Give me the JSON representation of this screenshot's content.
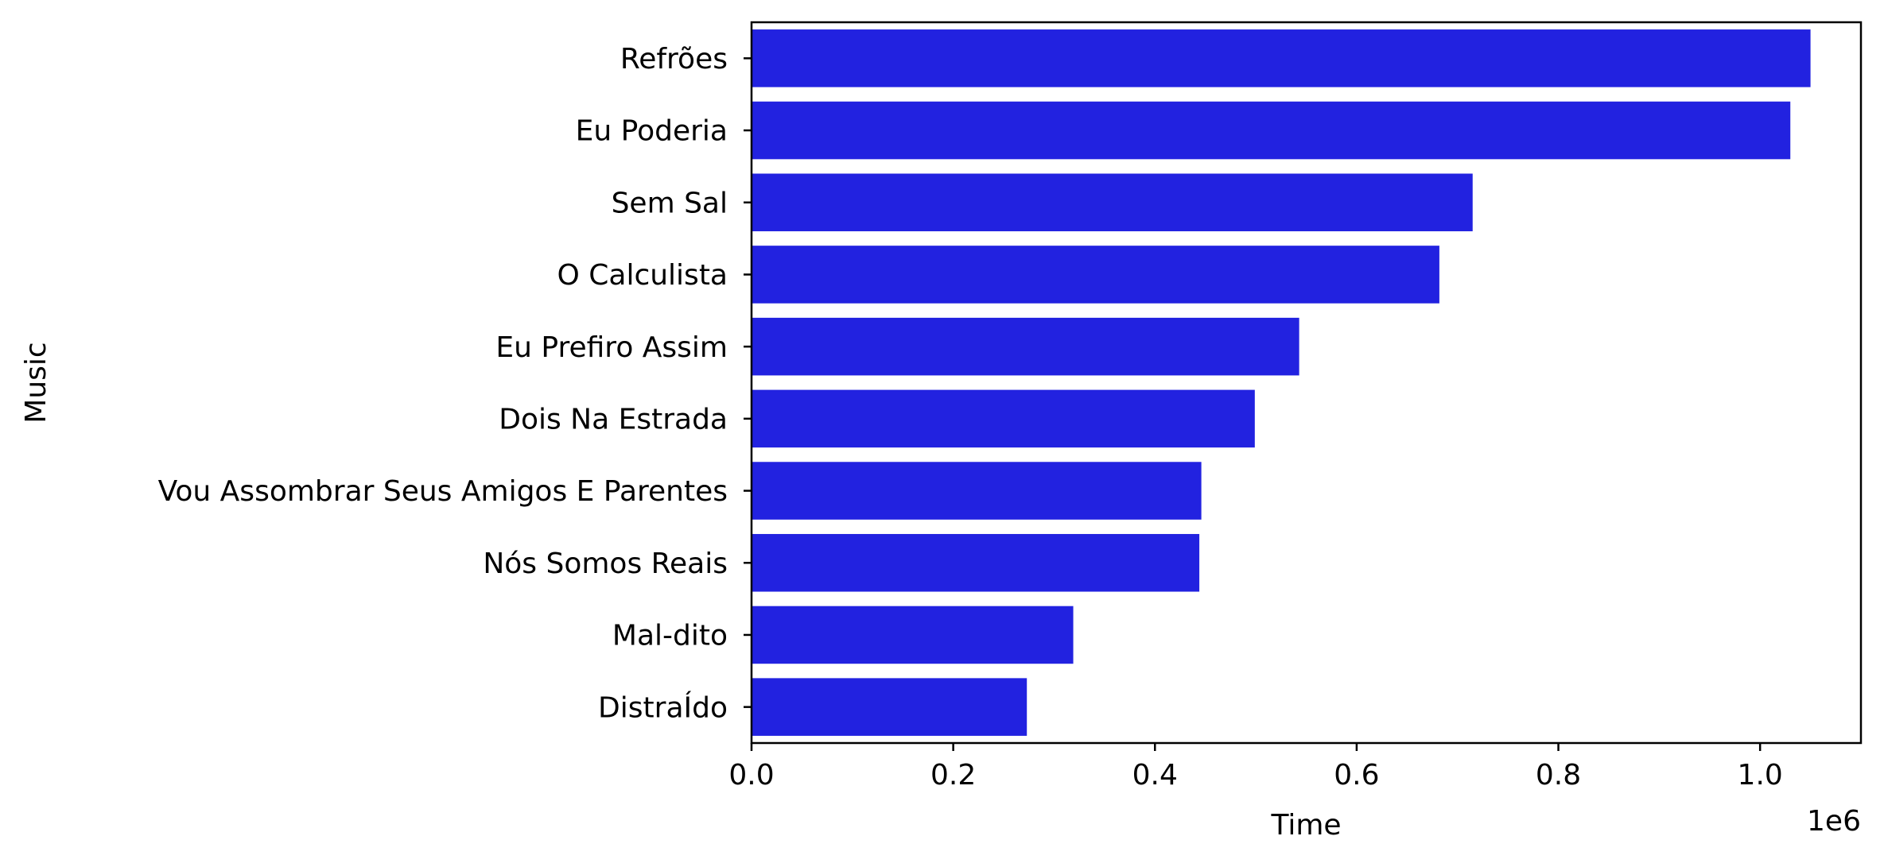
{
  "chart_data": {
    "type": "bar",
    "orientation": "horizontal",
    "title": "",
    "xlabel": "Time",
    "ylabel": "Music",
    "x_offset_label": "1e6",
    "xlim": [
      0,
      1.1
    ],
    "x_ticks": [
      "0.0",
      "0.2",
      "0.4",
      "0.6",
      "0.8",
      "1.0"
    ],
    "grid": false,
    "legend": "none",
    "bar_color": "#2222e0",
    "categories": [
      "Refrões",
      "Eu Poderia",
      "Sem Sal",
      "O Calculista",
      "Eu Prefiro Assim",
      "Dois Na Estrada",
      "Vou Assombrar Seus Amigos E Parentes",
      "Nós Somos Reais",
      "Mal-dito",
      "DistraÍdo"
    ],
    "values": [
      1.05,
      1.03,
      0.715,
      0.682,
      0.543,
      0.499,
      0.446,
      0.444,
      0.319,
      0.273
    ]
  }
}
